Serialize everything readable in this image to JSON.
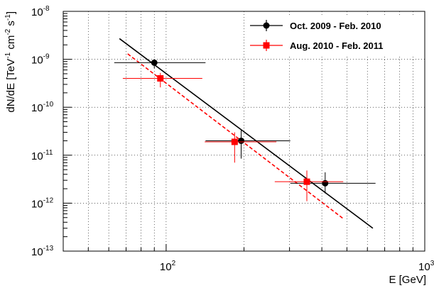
{
  "chart_data": {
    "type": "scatter",
    "title": "",
    "xlabel": "E [GeV]",
    "ylabel_parts": {
      "main": "dN/dE [TeV",
      "exp1": "-1",
      "mid": " cm",
      "exp2": "-2",
      "mid2": " s",
      "exp3": "-1",
      "end": "]"
    },
    "xscale": "log",
    "yscale": "log",
    "xlim": [
      40,
      1000
    ],
    "ylim": [
      1e-13,
      1e-08
    ],
    "grid": true,
    "legend_position": "top-right",
    "x_tick_labels": [
      {
        "value": 100,
        "base": "10",
        "exp": "2"
      },
      {
        "value": 1000,
        "base": "10",
        "exp": "3"
      }
    ],
    "y_tick_labels": [
      {
        "value": 1e-08,
        "base": "10",
        "exp": "-8"
      },
      {
        "value": 1e-09,
        "base": "10",
        "exp": "-9"
      },
      {
        "value": 1e-10,
        "base": "10",
        "exp": "-10"
      },
      {
        "value": 1e-11,
        "base": "10",
        "exp": "-11"
      },
      {
        "value": 1e-12,
        "base": "10",
        "exp": "-12"
      },
      {
        "value": 1e-13,
        "base": "10",
        "exp": "-13"
      }
    ],
    "series": [
      {
        "name": "Oct. 2009 - Feb. 2010",
        "color": "#000000",
        "marker": "circle",
        "line_style": "solid",
        "points": [
          {
            "x": 90,
            "y": 8.5e-10,
            "xlo": 63,
            "xhi": 142,
            "ylo": 6.5e-10,
            "yhi": 1e-09
          },
          {
            "x": 195,
            "y": 2e-11,
            "xlo": 142,
            "xhi": 302,
            "ylo": 8.5e-12,
            "yhi": 3.3e-11
          },
          {
            "x": 412,
            "y": 2.6e-12,
            "xlo": 302,
            "xhi": 645,
            "ylo": 1.6e-12,
            "yhi": 4.4e-12
          }
        ],
        "fit": {
          "x": [
            66,
            630
          ],
          "y": [
            2.7e-09,
            3e-13
          ]
        }
      },
      {
        "name": "Aug. 2010 - Feb. 2011",
        "color": "#ff0000",
        "marker": "square",
        "line_style": "dashed",
        "points": [
          {
            "x": 95,
            "y": 4e-10,
            "xlo": 68,
            "xhi": 138,
            "ylo": 2.6e-10,
            "yhi": 5.2e-10
          },
          {
            "x": 184,
            "y": 1.9e-11,
            "xlo": 141,
            "xhi": 267,
            "ylo": 7e-12,
            "yhi": 3e-11
          },
          {
            "x": 350,
            "y": 2.8e-12,
            "xlo": 263,
            "xhi": 484,
            "ylo": 1.1e-12,
            "yhi": 4.8e-12
          }
        ],
        "fit": {
          "x": [
            71,
            488
          ],
          "y": [
            1.3e-09,
            4.6e-13
          ]
        }
      }
    ]
  }
}
